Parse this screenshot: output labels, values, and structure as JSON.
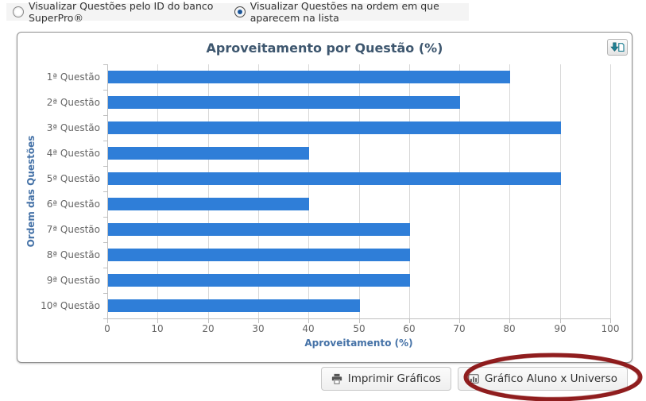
{
  "view_options": {
    "option_id": {
      "label": "Visualizar Questões pelo ID do banco SuperPro®",
      "selected": false
    },
    "option_order": {
      "label": "Visualizar Questões na ordem em que aparecem na lista",
      "selected": true
    }
  },
  "chart_data": {
    "type": "bar",
    "orientation": "horizontal",
    "title": "Aproveitamento por Questão (%)",
    "categories": [
      "1ª Questão",
      "2ª Questão",
      "3ª Questão",
      "4ª Questão",
      "5ª Questão",
      "6ª Questão",
      "7ª Questão",
      "8ª Questão",
      "9ª Questão",
      "10ª Questão"
    ],
    "values": [
      80,
      70,
      90,
      40,
      90,
      40,
      60,
      60,
      60,
      50
    ],
    "xlabel": "Aproveitamento (%)",
    "ylabel": "Ordem das Questões",
    "xlim": [
      0,
      100
    ],
    "x_ticks": [
      0,
      10,
      20,
      30,
      40,
      50,
      60,
      70,
      80,
      90,
      100
    ],
    "grid": true,
    "legend": "none",
    "bar_color": "#2f7ed8"
  },
  "toolbar": {
    "print_label": "Imprimir Gráficos",
    "compare_label": "Gráfico Aluno x Universo"
  },
  "icons": {
    "export": "export-chart-icon",
    "print": "printer-icon",
    "compare": "bar-chart-icon"
  },
  "colors": {
    "bar": "#2f7ed8",
    "title": "#3e576f",
    "axis_title": "#4572a7",
    "tick_label": "#666666",
    "gridline": "#d8d8d8",
    "axis_line": "#c0c0c0",
    "annotation_ellipse": "#8a1213",
    "export_glyph": "#1f7f93"
  }
}
